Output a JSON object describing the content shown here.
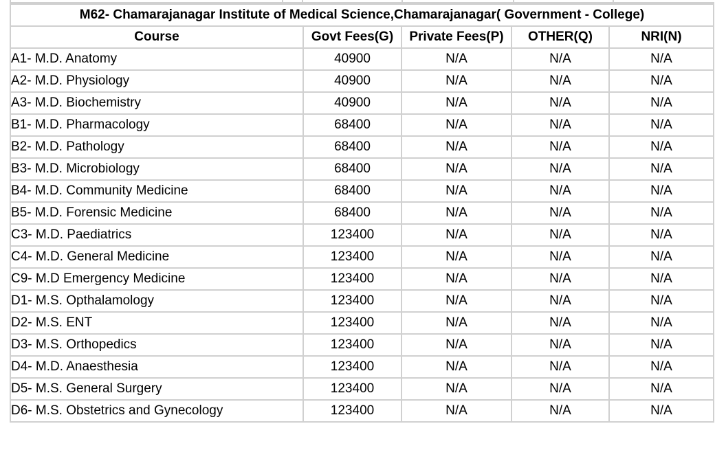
{
  "table": {
    "title": "M62- Chamarajanagar Institute of Medical Science,Chamarajanagar( Government - College)",
    "columns": [
      "Course",
      "Govt Fees(G)",
      "Private Fees(P)",
      "OTHER(Q)",
      "NRI(N)"
    ],
    "rows": [
      [
        "A1- M.D. Anatomy",
        "40900",
        "N/A",
        "N/A",
        "N/A"
      ],
      [
        "A2- M.D. Physiology",
        "40900",
        "N/A",
        "N/A",
        "N/A"
      ],
      [
        "A3- M.D. Biochemistry",
        "40900",
        "N/A",
        "N/A",
        "N/A"
      ],
      [
        "B1- M.D. Pharmacology",
        "68400",
        "N/A",
        "N/A",
        "N/A"
      ],
      [
        "B2- M.D. Pathology",
        "68400",
        "N/A",
        "N/A",
        "N/A"
      ],
      [
        "B3- M.D. Microbiology",
        "68400",
        "N/A",
        "N/A",
        "N/A"
      ],
      [
        "B4- M.D. Community Medicine",
        "68400",
        "N/A",
        "N/A",
        "N/A"
      ],
      [
        "B5- M.D. Forensic Medicine",
        "68400",
        "N/A",
        "N/A",
        "N/A"
      ],
      [
        "C3- M.D. Paediatrics",
        "123400",
        "N/A",
        "N/A",
        "N/A"
      ],
      [
        "C4- M.D. General Medicine",
        "123400",
        "N/A",
        "N/A",
        "N/A"
      ],
      [
        "C9- M.D Emergency Medicine",
        "123400",
        "N/A",
        "N/A",
        "N/A"
      ],
      [
        "D1- M.S. Opthalamology",
        "123400",
        "N/A",
        "N/A",
        "N/A"
      ],
      [
        "D2- M.S. ENT",
        "123400",
        "N/A",
        "N/A",
        "N/A"
      ],
      [
        "D3- M.S. Orthopedics",
        "123400",
        "N/A",
        "N/A",
        "N/A"
      ],
      [
        "D4- M.D. Anaesthesia",
        "123400",
        "N/A",
        "N/A",
        "N/A"
      ],
      [
        "D5- M.S. General Surgery",
        "123400",
        "N/A",
        "N/A",
        "N/A"
      ],
      [
        "D6- M.S. Obstetrics and Gynecology",
        "123400",
        "N/A",
        "N/A",
        "N/A"
      ]
    ],
    "colors": {
      "border": "#d0d0d0",
      "text": "#000000",
      "background": "#ffffff"
    }
  }
}
